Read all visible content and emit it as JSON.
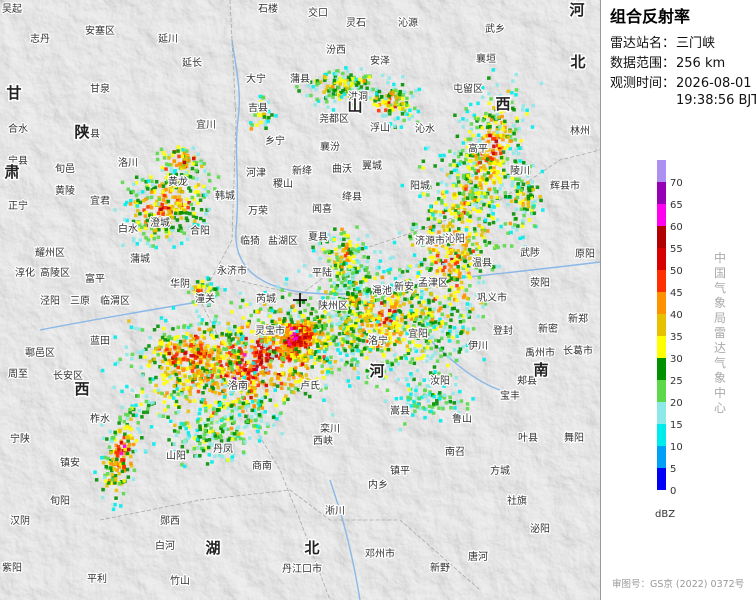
{
  "panel": {
    "title": "组合反射率",
    "station_label": "雷达站名：",
    "station": "三门峡",
    "range_label": "数据范围：",
    "range": "256 km",
    "time_label": "观测时间：",
    "date": "2026-08-01",
    "time": "19:38:56 BJT"
  },
  "legend": {
    "levels": [
      {
        "value": 0,
        "color": "#0000f6"
      },
      {
        "value": 5,
        "color": "#01a0f6"
      },
      {
        "value": 10,
        "color": "#00ecec"
      },
      {
        "value": 15,
        "color": "#8ee8e8"
      },
      {
        "value": 20,
        "color": "#5cd84a"
      },
      {
        "value": 25,
        "color": "#019000"
      },
      {
        "value": 30,
        "color": "#ffff00"
      },
      {
        "value": 35,
        "color": "#e7c000"
      },
      {
        "value": 40,
        "color": "#ff9000"
      },
      {
        "value": 45,
        "color": "#ff3000"
      },
      {
        "value": 50,
        "color": "#d60000"
      },
      {
        "value": 55,
        "color": "#b00000"
      },
      {
        "value": 60,
        "color": "#ff00f0"
      },
      {
        "value": 65,
        "color": "#9600b4"
      },
      {
        "value": 70,
        "color": "#ad90f0"
      }
    ],
    "unit": "dBZ",
    "agency": "中国气象局雷达气象中心",
    "approval": "审图号：GS京 (2022) 0372号"
  },
  "map": {
    "regions": [
      "陕",
      "西",
      "山",
      "西",
      "河",
      "南",
      "湖",
      "北",
      "河",
      "北",
      "甘",
      "肃"
    ],
    "places": [
      "吴起",
      "志丹",
      "安塞区",
      "延川",
      "石楼",
      "交口",
      "灵石",
      "沁源",
      "武乡",
      "襄垣",
      "屯留区",
      "安泽",
      "延长",
      "甘泉",
      "宜川",
      "吉县",
      "乡宁",
      "大宁",
      "蒲县",
      "汾西",
      "洪洞",
      "尧都区",
      "浮山",
      "襄汾",
      "翼城",
      "曲沃",
      "绛县",
      "稷山",
      "新绛",
      "河津",
      "万荣",
      "闻喜",
      "临猗",
      "盐湖区",
      "夏县",
      "永济市",
      "芮城",
      "平陆",
      "陕州区",
      "渑池",
      "新安",
      "孟津区",
      "济源市",
      "沁阳",
      "温县",
      "武陟",
      "原阳",
      "阳城",
      "沁水",
      "高平",
      "陵川",
      "辉县市",
      "林州",
      "巩义市",
      "荥阳",
      "伊川",
      "汝阳",
      "嵩县",
      "登封",
      "新密",
      "新郑",
      "禹州市",
      "长葛市",
      "郏县",
      "宝丰",
      "鲁山",
      "叶县",
      "舞阳",
      "方城",
      "南召",
      "镇平",
      "内乡",
      "西峡",
      "淅川",
      "邓州市",
      "新野",
      "唐河",
      "社旗",
      "泌阳",
      "丹江口市",
      "郧西",
      "白河",
      "竹山",
      "平利",
      "汉阴",
      "紫阳",
      "镇安",
      "山阳",
      "商南",
      "丹凤",
      "洛南",
      "卢氏",
      "栾川",
      "洛宁",
      "宜阳",
      "灵宝市",
      "华阴",
      "潼关",
      "蓝田",
      "长安区",
      "临渭区",
      "高陵区",
      "富平",
      "蒲城",
      "白水",
      "澄城",
      "合阳",
      "韩城",
      "黄龙",
      "宜君",
      "洛川",
      "黄陵",
      "富县",
      "耀州区",
      "泾阳",
      "三原",
      "淳化",
      "旬邑",
      "正宁",
      "宁县",
      "合水",
      "周至",
      "鄠邑区",
      "柞水",
      "宁陕",
      "旬阳"
    ]
  }
}
